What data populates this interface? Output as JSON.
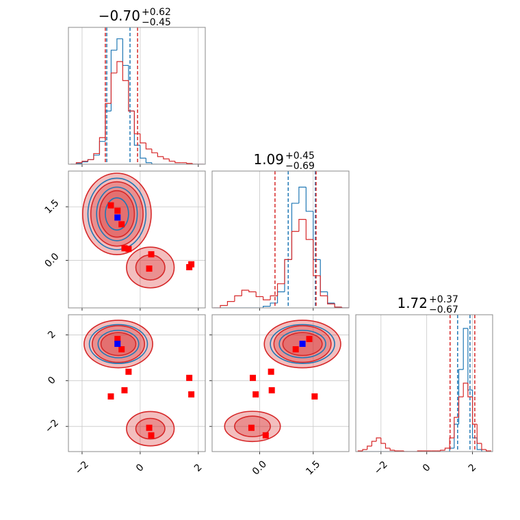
{
  "chart_data": {
    "type": "corner",
    "params": [
      {
        "lim": [
          -2.47,
          2.24
        ],
        "ticks": [
          {
            "value": -2,
            "label": "−2"
          },
          0,
          2
        ]
      },
      {
        "lim": [
          -1.33,
          2.5
        ],
        "ticks": [
          {
            "value": 0,
            "label": "0.0"
          },
          1.5
        ]
      },
      {
        "lim": [
          -3.1,
          2.88
        ],
        "ticks": [
          {
            "value": -2,
            "label": "−2"
          },
          0,
          2
        ]
      }
    ],
    "titles": [
      {
        "value": "−0.70",
        "plus": "+0.62",
        "minus": "−0.45"
      },
      {
        "value": "1.09",
        "plus": "+0.45",
        "minus": "−0.69"
      },
      {
        "value": "1.72",
        "plus": "+0.37",
        "minus": "−0.67"
      }
    ],
    "histograms": [
      {
        "bins": [
          -2.4,
          -2.2,
          -2.0,
          -1.8,
          -1.6,
          -1.4,
          -1.2,
          -1.0,
          -0.8,
          -0.6,
          -0.4,
          -0.2,
          0.0,
          0.2,
          0.4,
          0.6,
          0.8,
          1.0,
          1.2,
          1.4,
          1.6,
          1.8,
          2.0,
          2.2
        ],
        "ylim": [
          0,
          180
        ],
        "series": [
          {
            "color": "#1f77b4",
            "values": [
              0,
              1,
              3,
              6,
              12,
              30,
              70,
              150,
              165,
              130,
              70,
              25,
              8,
              2,
              0,
              0,
              0,
              0,
              0,
              0,
              0,
              0,
              0
            ],
            "quantiles": [
              -1.15,
              -0.35
            ]
          },
          {
            "color": "#d62728",
            "values": [
              0,
              2,
              4,
              6,
              14,
              35,
              80,
              120,
              135,
              110,
              70,
              40,
              28,
              20,
              15,
              10,
              7,
              4,
              2,
              2,
              1,
              0,
              0
            ],
            "quantiles": [
              -1.2,
              -0.09
            ]
          }
        ]
      },
      {
        "bins": [
          -1.3,
          -1.1,
          -0.9,
          -0.7,
          -0.5,
          -0.3,
          -0.1,
          0.1,
          0.3,
          0.5,
          0.7,
          0.9,
          1.1,
          1.3,
          1.5,
          1.7,
          1.9,
          2.1,
          2.3,
          2.5
        ],
        "ylim": [
          0,
          170
        ],
        "series": [
          {
            "color": "#1f77b4",
            "values": [
              0,
              0,
              0,
              0,
              0,
              0,
              0,
              2,
              6,
              20,
              60,
              130,
              150,
              120,
              60,
              20,
              6,
              1,
              0
            ],
            "quantiles": [
              0.8,
              1.56
            ]
          },
          {
            "color": "#d62728",
            "values": [
              0,
              3,
              8,
              15,
              22,
              20,
              14,
              10,
              15,
              30,
              60,
              95,
              110,
              85,
              40,
              15,
              5,
              1,
              0
            ],
            "quantiles": [
              0.43,
              1.58
            ]
          }
        ]
      },
      {
        "bins": [
          -3.0,
          -2.8,
          -2.6,
          -2.4,
          -2.2,
          -2.0,
          -1.8,
          -1.6,
          -1.4,
          -1.2,
          -1.0,
          -0.8,
          -0.6,
          -0.4,
          -0.2,
          0.0,
          0.2,
          0.4,
          0.6,
          0.8,
          1.0,
          1.2,
          1.4,
          1.6,
          1.8,
          2.0,
          2.2,
          2.4,
          2.6,
          2.8
        ],
        "ylim": [
          0,
          200
        ],
        "series": [
          {
            "color": "#1f77b4",
            "values": [
              0,
              0,
              0,
              0,
              0,
              0,
              0,
              0,
              0,
              0,
              0,
              0,
              0,
              0,
              0,
              0,
              0,
              0,
              0,
              0,
              5,
              40,
              120,
              180,
              90,
              20,
              3,
              0,
              0
            ],
            "quantiles": [
              1.35,
              1.89
            ]
          },
          {
            "color": "#d62728",
            "values": [
              1,
              3,
              8,
              15,
              20,
              12,
              5,
              2,
              1,
              1,
              0,
              0,
              0,
              1,
              1,
              1,
              1,
              1,
              2,
              5,
              20,
              50,
              80,
              100,
              80,
              40,
              12,
              3,
              1
            ],
            "quantiles": [
              1.02,
              2.1
            ]
          }
        ]
      }
    ],
    "contours": [
      {
        "panel": [
          1,
          0
        ],
        "series": [
          {
            "color": "#d62728",
            "ellipses": [
              [
                -0.8,
                1.3,
                1.18,
                1.14
              ],
              [
                -0.8,
                1.3,
                0.9,
                0.9
              ],
              [
                -0.8,
                1.3,
                0.6,
                0.65
              ],
              [
                0.35,
                -0.2,
                0.82,
                0.57
              ],
              [
                0.35,
                -0.2,
                0.5,
                0.35
              ]
            ]
          },
          {
            "color": "#1f77b4",
            "ellipses": [
              [
                -0.8,
                1.3,
                1.0,
                1.0
              ],
              [
                -0.8,
                1.3,
                0.7,
                0.75
              ],
              [
                -0.8,
                1.3,
                0.4,
                0.45
              ]
            ]
          }
        ]
      },
      {
        "panel": [
          2,
          0
        ],
        "series": [
          {
            "color": "#d62728",
            "ellipses": [
              [
                -0.75,
                1.6,
                1.18,
                1.04
              ],
              [
                -0.75,
                1.6,
                0.9,
                0.8
              ],
              [
                -0.75,
                1.6,
                0.6,
                0.5
              ],
              [
                0.35,
                -2.1,
                0.82,
                0.75
              ],
              [
                0.35,
                -2.1,
                0.5,
                0.45
              ]
            ]
          },
          {
            "color": "#1f77b4",
            "ellipses": [
              [
                -0.75,
                1.6,
                1.0,
                0.85
              ],
              [
                -0.75,
                1.6,
                0.7,
                0.6
              ]
            ]
          }
        ]
      },
      {
        "panel": [
          2,
          1
        ],
        "series": [
          {
            "color": "#d62728",
            "ellipses": [
              [
                1.2,
                1.6,
                1.07,
                1.04
              ],
              [
                1.2,
                1.6,
                0.8,
                0.8
              ],
              [
                1.2,
                1.6,
                0.55,
                0.5
              ],
              [
                -0.2,
                -2.0,
                0.78,
                0.66
              ],
              [
                -0.2,
                -2.0,
                0.5,
                0.45
              ]
            ]
          },
          {
            "color": "#1f77b4",
            "ellipses": [
              [
                1.2,
                1.6,
                0.9,
                0.85
              ],
              [
                1.2,
                1.6,
                0.65,
                0.6
              ]
            ]
          }
        ]
      }
    ],
    "points": [
      {
        "color": "#ff0000",
        "values": [
          [
            -1.01,
            1.54,
            -0.69
          ],
          [
            -0.64,
            1.01,
            1.37
          ],
          [
            -0.54,
            0.34,
            -0.42
          ],
          [
            -0.4,
            0.32,
            0.39
          ],
          [
            0.38,
            0.17,
            -2.39
          ],
          [
            0.31,
            -0.23,
            -2.06
          ],
          [
            1.76,
            -0.11,
            -0.6
          ],
          [
            1.69,
            -0.19,
            0.12
          ],
          [
            -0.78,
            1.39,
            1.82
          ]
        ]
      },
      {
        "color": "#0000ff",
        "values": [
          [
            -0.78,
            1.2,
            1.61
          ]
        ]
      }
    ],
    "grid": true
  }
}
